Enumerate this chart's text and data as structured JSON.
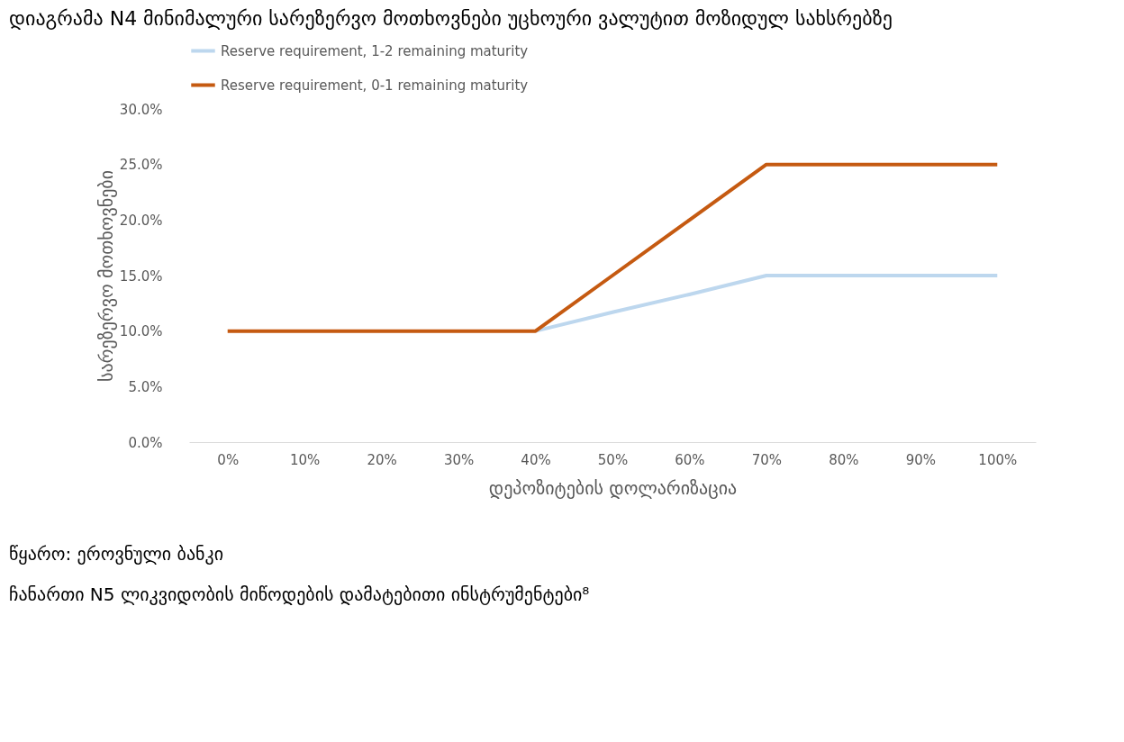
{
  "chart_data": {
    "type": "line",
    "title": "დიაგრამა N4 მინიმალური სარეზერვო მოთხოვნები უცხოური ვალუტით მოზიდულ სახსრებზე",
    "xlabel": "დეპოზიტების დოლარიზაცია",
    "ylabel": "სარეზერვო მოთხოვნები",
    "categories": [
      "0%",
      "10%",
      "20%",
      "30%",
      "40%",
      "50%",
      "60%",
      "70%",
      "80%",
      "90%",
      "100%"
    ],
    "series": [
      {
        "name": "Reserve requirement, 1-2 remaining maturity",
        "color": "#bdd7ee",
        "values": [
          null,
          null,
          null,
          null,
          10,
          11.7,
          13.3,
          15,
          15,
          15,
          15
        ]
      },
      {
        "name": "Reserve requirement, 0-1 remaining maturity",
        "color": "#c55a11",
        "values": [
          10,
          10,
          10,
          10,
          10,
          15,
          20,
          25,
          25,
          25,
          25
        ]
      }
    ],
    "ylim": [
      0,
      30
    ],
    "yticks": [
      {
        "value": 0,
        "label": "0.0%"
      },
      {
        "value": 5,
        "label": "5.0%"
      },
      {
        "value": 10,
        "label": "10.0%"
      },
      {
        "value": 15,
        "label": "15.0%"
      },
      {
        "value": 20,
        "label": "20.0%"
      },
      {
        "value": 25,
        "label": "25.0%"
      },
      {
        "value": 30,
        "label": "30.0%"
      }
    ],
    "legend": "top",
    "annotations": [
      "წყარო: ეროვნული ბანკი",
      "ჩანართი N5 ლიკვიდობის მიწოდების დამატებითი ინსტრუმენტები⁸"
    ]
  }
}
